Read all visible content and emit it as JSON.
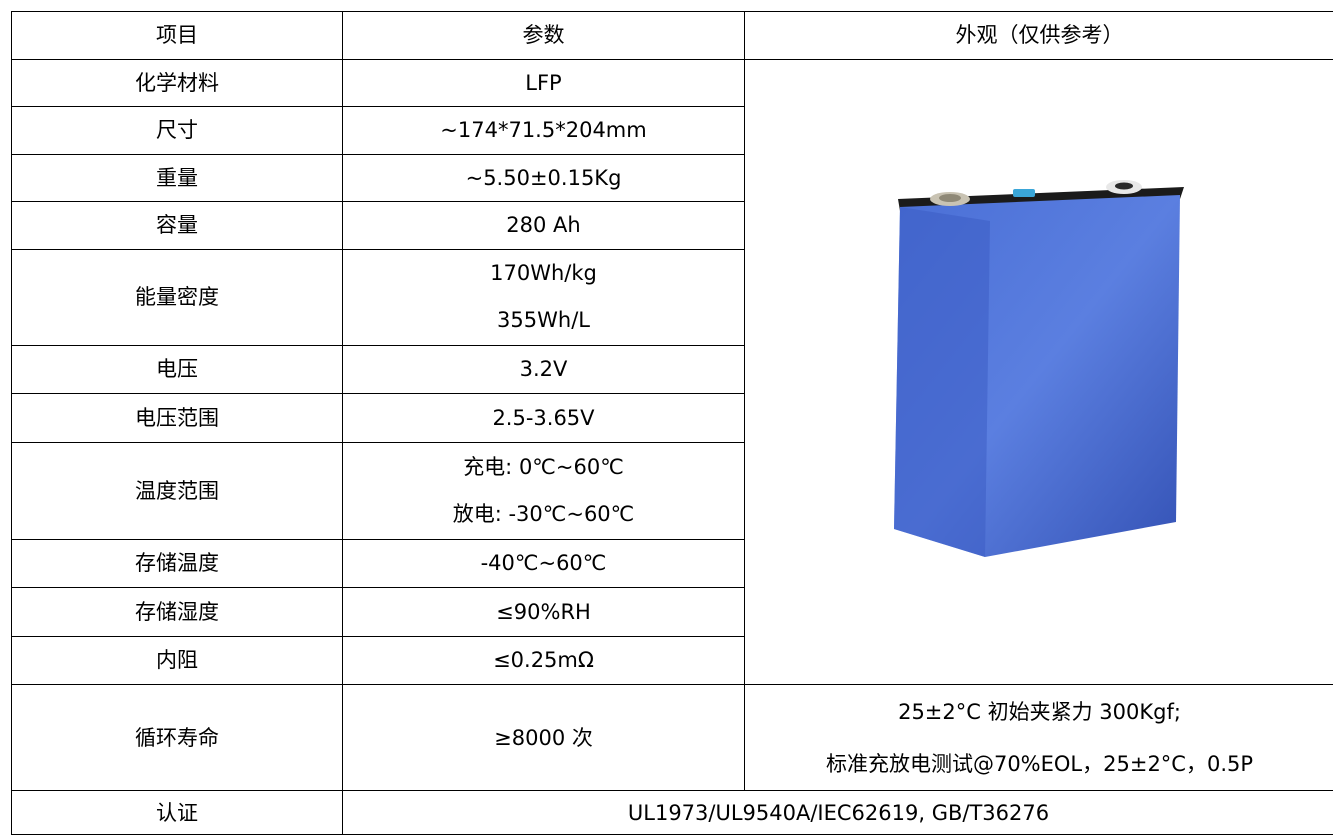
{
  "header": {
    "col1": "项目",
    "col2": "参数",
    "col3": "外观（仅供参考）"
  },
  "rows": [
    {
      "label": "化学材料",
      "values": [
        "LFP"
      ]
    },
    {
      "label": "尺寸",
      "values": [
        "~174*71.5*204mm"
      ]
    },
    {
      "label": "重量",
      "values": [
        "~5.50±0.15Kg"
      ]
    },
    {
      "label": "容量",
      "values": [
        "280 Ah"
      ]
    },
    {
      "label": "能量密度",
      "values": [
        "170Wh/kg",
        "355Wh/L"
      ]
    },
    {
      "label": "电压",
      "values": [
        "3.2V"
      ]
    },
    {
      "label": "电压范围",
      "values": [
        "2.5-3.65V"
      ]
    },
    {
      "label": "温度范围",
      "values": [
        "充电: 0℃~60℃",
        "放电: -30℃~60℃"
      ]
    },
    {
      "label": "存储温度",
      "values": [
        "-40℃~60℃"
      ]
    },
    {
      "label": "存储湿度",
      "values": [
        "≤90%RH"
      ]
    },
    {
      "label": "内阻",
      "values": [
        "≤0.25mΩ"
      ]
    }
  ],
  "cycle": {
    "label": "循环寿命",
    "value": "≥8000 次",
    "notes": [
      "25±2°C 初始夹紧力 300Kgf;",
      "标准充放电测试@70%EOL，25±2°C，0.5P"
    ]
  },
  "cert": {
    "label": "认证",
    "value": "UL1973/UL9540A/IEC62619, GB/T36276"
  },
  "image": {
    "subject": "battery-cell",
    "body_color": "#3f5fc8",
    "top_color": "#1b1b1b",
    "vent_color": "#3aa6d8"
  }
}
